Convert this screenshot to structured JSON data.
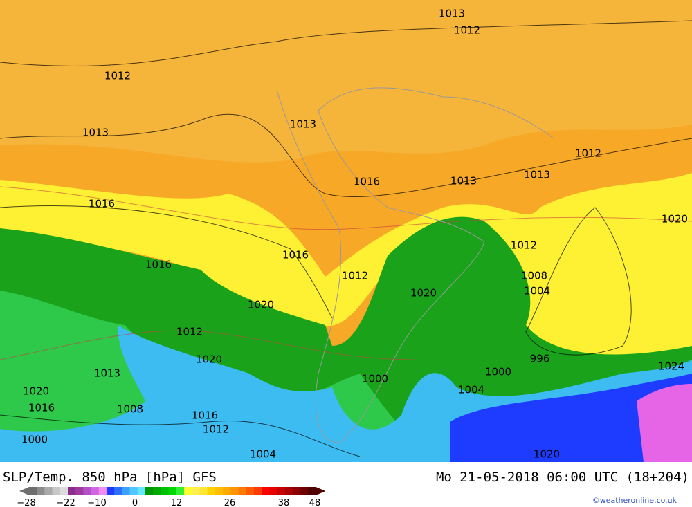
{
  "header": {
    "title": "SLP/Temp. 850 hPa [hPa] GFS",
    "valid_time": "Mo 21-05-2018 06:00 UTC (18+204)"
  },
  "colorbar": {
    "labels": [
      "−28",
      "−22",
      "−10",
      "0",
      "12",
      "26",
      "38",
      "48"
    ]
  },
  "credit": "©weatheronline.co.uk",
  "isobar_labels": [
    "1013",
    "1012",
    "1012",
    "1013",
    "1013",
    "1016",
    "1013",
    "1013",
    "1012",
    "1016",
    "1020",
    "1016",
    "1012",
    "1016",
    "1008",
    "1012",
    "1004",
    "1020",
    "1020",
    "1012",
    "996",
    "1020",
    "1024",
    "1000",
    "1000",
    "1013",
    "1004",
    "1020",
    "1016",
    "1008",
    "1016",
    "1012",
    "1000",
    "1004",
    "1020"
  ]
}
